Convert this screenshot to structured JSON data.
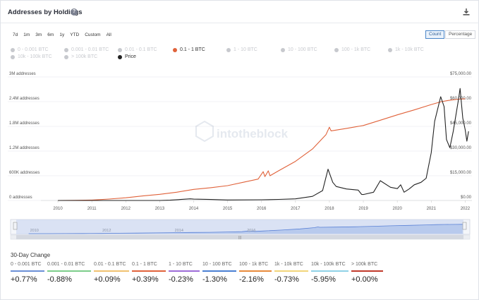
{
  "header": {
    "title": "Addresses by Holdings",
    "help_icon": "?"
  },
  "range_buttons": [
    "7d",
    "1m",
    "3m",
    "6m",
    "1y",
    "YTD",
    "Custom",
    "All"
  ],
  "mode_toggle": {
    "count": "Count",
    "percentage": "Percentage",
    "selected": "Count"
  },
  "legend": [
    {
      "label": "0 - 0.001 BTC",
      "color": "#c7c9ce",
      "active": false
    },
    {
      "label": "0.001 - 0.01 BTC",
      "color": "#c7c9ce",
      "active": false
    },
    {
      "label": "0.01 - 0.1 BTC",
      "color": "#c7c9ce",
      "active": false
    },
    {
      "label": "0.1 - 1 BTC",
      "color": "#e0623a",
      "active": true
    },
    {
      "label": "1 - 10 BTC",
      "color": "#c7c9ce",
      "active": false
    },
    {
      "label": "10 - 100 BTC",
      "color": "#c7c9ce",
      "active": false
    },
    {
      "label": "100 - 1k BTC",
      "color": "#c7c9ce",
      "active": false
    },
    {
      "label": "1k - 10k BTC",
      "color": "#c7c9ce",
      "active": false
    },
    {
      "label": "10k - 100k BTC",
      "color": "#c7c9ce",
      "active": false
    },
    {
      "label": "> 100k BTC",
      "color": "#c7c9ce",
      "active": false
    },
    {
      "label": "Price",
      "color": "#222222",
      "active": true
    }
  ],
  "watermark": "intotheblock",
  "chart_data": {
    "type": "line",
    "title": "Addresses by Holdings",
    "x_ticks": [
      "2010",
      "2011",
      "2012",
      "2013",
      "2014",
      "2015",
      "2016",
      "2017",
      "2018",
      "2019",
      "2020",
      "2021",
      "2022"
    ],
    "y_left_ticks": [
      "0 addresses",
      "600K addresses",
      "1.2M addresses",
      "1.8M addresses",
      "2.4M addresses",
      "3M addresses"
    ],
    "y_left_range": [
      0,
      3000000
    ],
    "y_right_ticks": [
      "$0.00",
      "$15,000.00",
      "$30,000.00",
      "$45,000.00",
      "$60,000.00",
      "$75,000.00"
    ],
    "y_right_range": [
      0,
      75000
    ],
    "grid": true,
    "series": [
      {
        "name": "0.1 - 1 BTC",
        "axis": "left",
        "color": "#e0623a",
        "points": [
          [
            2010.0,
            0
          ],
          [
            2010.5,
            3000
          ],
          [
            2011.0,
            10000
          ],
          [
            2011.5,
            35000
          ],
          [
            2012.0,
            65000
          ],
          [
            2012.5,
            110000
          ],
          [
            2013.0,
            150000
          ],
          [
            2013.5,
            200000
          ],
          [
            2014.0,
            270000
          ],
          [
            2014.5,
            310000
          ],
          [
            2015.0,
            360000
          ],
          [
            2015.5,
            450000
          ],
          [
            2015.9,
            520000
          ],
          [
            2016.05,
            700000
          ],
          [
            2016.1,
            580000
          ],
          [
            2016.2,
            720000
          ],
          [
            2016.25,
            600000
          ],
          [
            2016.5,
            720000
          ],
          [
            2017.0,
            950000
          ],
          [
            2017.5,
            1250000
          ],
          [
            2017.9,
            1600000
          ],
          [
            2018.0,
            1780000
          ],
          [
            2018.05,
            1690000
          ],
          [
            2018.5,
            1750000
          ],
          [
            2019.0,
            1820000
          ],
          [
            2019.5,
            1950000
          ],
          [
            2020.0,
            2080000
          ],
          [
            2020.5,
            2200000
          ],
          [
            2021.0,
            2330000
          ],
          [
            2021.3,
            2400000
          ],
          [
            2021.5,
            2430000
          ],
          [
            2021.8,
            2460000
          ],
          [
            2022.0,
            2470000
          ]
        ]
      },
      {
        "name": "Price",
        "axis": "right",
        "color": "#222222",
        "points": [
          [
            2010.0,
            0
          ],
          [
            2011.0,
            20
          ],
          [
            2011.5,
            15
          ],
          [
            2012.0,
            5
          ],
          [
            2013.0,
            13
          ],
          [
            2013.3,
            150
          ],
          [
            2013.9,
            1000
          ],
          [
            2014.0,
            800
          ],
          [
            2014.5,
            600
          ],
          [
            2015.0,
            300
          ],
          [
            2016.0,
            430
          ],
          [
            2016.5,
            650
          ],
          [
            2017.0,
            1000
          ],
          [
            2017.5,
            2500
          ],
          [
            2017.8,
            6000
          ],
          [
            2017.96,
            19000
          ],
          [
            2018.1,
            11000
          ],
          [
            2018.2,
            8500
          ],
          [
            2018.5,
            7000
          ],
          [
            2018.85,
            6300
          ],
          [
            2018.95,
            3700
          ],
          [
            2019.0,
            3600
          ],
          [
            2019.3,
            5000
          ],
          [
            2019.5,
            12000
          ],
          [
            2019.8,
            8000
          ],
          [
            2020.0,
            7200
          ],
          [
            2020.1,
            9500
          ],
          [
            2020.2,
            5000
          ],
          [
            2020.35,
            7000
          ],
          [
            2020.5,
            9500
          ],
          [
            2020.7,
            11000
          ],
          [
            2020.85,
            13500
          ],
          [
            2021.0,
            29000
          ],
          [
            2021.1,
            48000
          ],
          [
            2021.28,
            63000
          ],
          [
            2021.38,
            57000
          ],
          [
            2021.45,
            37000
          ],
          [
            2021.55,
            32000
          ],
          [
            2021.65,
            42000
          ],
          [
            2021.8,
            61000
          ],
          [
            2021.85,
            68000
          ],
          [
            2021.93,
            50000
          ],
          [
            2022.0,
            43000
          ],
          [
            2022.05,
            36000
          ],
          [
            2022.1,
            42000
          ]
        ]
      }
    ],
    "x_range": [
      2009.5,
      2022.2
    ]
  },
  "navigator": {
    "x_ticks": [
      "2010",
      "2012",
      "2014",
      "2016"
    ]
  },
  "thirty_day_change": {
    "title": "30-Day Change",
    "items": [
      {
        "label": "0 - 0.001 BTC",
        "value": "+0.77%",
        "color": "#6b8fd6"
      },
      {
        "label": "0.001 - 0.01 BTC",
        "value": "-0.88%",
        "color": "#7ccd8a"
      },
      {
        "label": "0.01 - 0.1 BTC",
        "value": "+0.09%",
        "color": "#f0c270"
      },
      {
        "label": "0.1 - 1 BTC",
        "value": "+0.39%",
        "color": "#e0623a"
      },
      {
        "label": "1 - 10 BTC",
        "value": "-0.23%",
        "color": "#9d6cd8"
      },
      {
        "label": "10 - 100 BTC",
        "value": "-1.30%",
        "color": "#4a7fd3"
      },
      {
        "label": "100 - 1k BTC",
        "value": "-2.16%",
        "color": "#e88a3a"
      },
      {
        "label": "1k - 10k BTC",
        "value": "-0.73%",
        "color": "#f2d57a"
      },
      {
        "label": "10k - 100k BTC",
        "value": "-5.95%",
        "color": "#8fd1e6"
      },
      {
        "label": "> 100k BTC",
        "value": "+0.00%",
        "color": "#c0392b"
      }
    ]
  }
}
